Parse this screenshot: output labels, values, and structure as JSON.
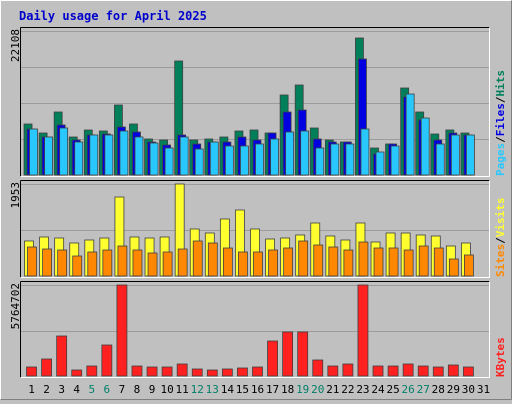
{
  "chart_data": {
    "type": "bar",
    "title": "Daily usage for April 2025",
    "categories": [
      "1",
      "2",
      "3",
      "4",
      "5",
      "6",
      "7",
      "8",
      "9",
      "10",
      "11",
      "12",
      "13",
      "14",
      "15",
      "16",
      "17",
      "18",
      "19",
      "20",
      "21",
      "22",
      "23",
      "24",
      "25",
      "26",
      "27",
      "28",
      "29",
      "30",
      "31"
    ],
    "weekend_days": [
      "5",
      "6",
      "12",
      "13",
      "19",
      "20",
      "26",
      "27"
    ],
    "colors": {
      "title": "#0000cc",
      "weekday_label": "#000000",
      "weekend_label": "#00806a",
      "hits": "#00805a",
      "files": "#0000e0",
      "pages": "#28c8ff",
      "visits": "#ffff30",
      "sites": "#ff8800",
      "kbytes": "#ff2020",
      "plot_bg": "#c0c0c0",
      "grid": "#9c9c9c"
    },
    "panels": [
      {
        "id": "hits-files-pages",
        "ymax_label": "22108",
        "ymax": 22108,
        "legend": [
          {
            "label": "Hits",
            "color": "#00805a"
          },
          {
            "label": "/",
            "color": "#000000"
          },
          {
            "label": "Files",
            "color": "#0000e0"
          },
          {
            "label": "/",
            "color": "#000000"
          },
          {
            "label": "Pages",
            "color": "#28c8ff"
          }
        ],
        "series": [
          {
            "key": "hits",
            "values": [
              7900,
              6500,
              9700,
              5900,
              6900,
              6800,
              10800,
              7900,
              5600,
              5400,
              17500,
              5400,
              5600,
              5900,
              6800,
              6900,
              6500,
              12300,
              13800,
              7200,
              5300,
              5100,
              21100,
              4200,
              4800,
              13400,
              9700,
              6300,
              6900,
              6500,
              0
            ]
          },
          {
            "key": "files",
            "values": [
              7000,
              5800,
              7700,
              5400,
              6200,
              6300,
              7300,
              6600,
              5100,
              4600,
              6100,
              4700,
              5100,
              5000,
              5900,
              5300,
              6400,
              9600,
              10000,
              5500,
              5100,
              5100,
              17800,
              3300,
              4700,
              11900,
              8400,
              5300,
              6500,
              6200,
              0
            ]
          },
          {
            "key": "pages",
            "values": [
              7000,
              5800,
              7200,
              5100,
              6100,
              6100,
              6800,
              5800,
              4900,
              4200,
              5900,
              4000,
              5100,
              4500,
              4400,
              4800,
              5600,
              6600,
              6700,
              4100,
              4700,
              4700,
              7000,
              3500,
              4400,
              12500,
              8800,
              4700,
              6100,
              6200,
              0
            ]
          }
        ]
      },
      {
        "id": "visits-sites",
        "ymax_label": "1953",
        "ymax": 1953,
        "legend": [
          {
            "label": "Visits",
            "color": "#ffff30"
          },
          {
            "label": "/",
            "color": "#000000"
          },
          {
            "label": "Sites",
            "color": "#ff8800"
          }
        ],
        "series": [
          {
            "key": "visits",
            "values": [
              740,
              820,
              800,
              700,
              760,
              800,
              1680,
              820,
              800,
              820,
              1960,
              1000,
              920,
              1200,
              1400,
              1000,
              780,
              800,
              860,
              1120,
              840,
              760,
              1120,
              720,
              910,
              920,
              880,
              840,
              640,
              700,
              0
            ]
          },
          {
            "key": "sites",
            "values": [
              620,
              580,
              560,
              420,
              500,
              560,
              640,
              560,
              480,
              500,
              580,
              740,
              700,
              600,
              520,
              500,
              560,
              600,
              740,
              660,
              620,
              560,
              720,
              600,
              600,
              560,
              640,
              600,
              370,
              440,
              0
            ]
          }
        ]
      },
      {
        "id": "kbytes",
        "ymax_label": "5764702",
        "ymax": 5764702,
        "legend": [
          {
            "label": "KBytes",
            "color": "#ff2020"
          }
        ],
        "series": [
          {
            "key": "kbytes",
            "values": [
              540000,
              1090000,
              2530000,
              350000,
              640000,
              1940000,
              5764702,
              640000,
              540000,
              540000,
              760000,
              420000,
              380000,
              420000,
              500000,
              540000,
              2240000,
              2800000,
              2760000,
              990000,
              640000,
              760000,
              5764702,
              620000,
              640000,
              760000,
              640000,
              580000,
              680000,
              560000,
              0
            ]
          }
        ]
      }
    ]
  }
}
